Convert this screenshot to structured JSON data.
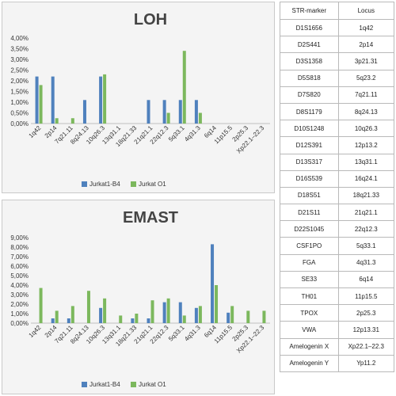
{
  "chart_data": [
    {
      "type": "bar",
      "title": "LOH",
      "categories": [
        "1q42",
        "2p14",
        "7q21.11",
        "8q24.13",
        "10q26.3",
        "13q31.1",
        "18q21.33",
        "21q21.1",
        "22q12.3",
        "5q33.1",
        "4q31.3",
        "6q14",
        "11p15.5",
        "2p25.3",
        "Xp22.1–22.3"
      ],
      "series": [
        {
          "name": "Jurkat1-B4",
          "color": "#4f81bd",
          "values": [
            2.2,
            2.2,
            0,
            1.1,
            2.2,
            0,
            0,
            1.1,
            1.1,
            1.1,
            1.1,
            0,
            0,
            0,
            0
          ]
        },
        {
          "name": "Jurkat O1",
          "color": "#7cb85d",
          "values": [
            1.8,
            0.25,
            0.25,
            0,
            2.3,
            0,
            0,
            0,
            0.5,
            3.4,
            0.5,
            0,
            0,
            0,
            0
          ]
        }
      ],
      "yticks": [
        "0,00%",
        "0,50%",
        "1,00%",
        "1,50%",
        "2,00%",
        "2,50%",
        "3,00%",
        "3,50%",
        "4,00%"
      ],
      "ylim": [
        0,
        4
      ],
      "legend": "bottom"
    },
    {
      "type": "bar",
      "title": "EMAST",
      "categories": [
        "1q42",
        "2p14",
        "7q21.11",
        "8q24.13",
        "10q26.3",
        "13q31.1",
        "18q21.33",
        "21q21.1",
        "22q12.3",
        "5q33.1",
        "4q31.3",
        "6q14",
        "11p15.5",
        "2p25.3",
        "Xp22.1–22.3"
      ],
      "series": [
        {
          "name": "Jurkat1-B4",
          "color": "#4f81bd",
          "values": [
            0,
            0.5,
            0.5,
            0,
            1.6,
            0,
            0.5,
            0.5,
            2.2,
            2.2,
            1.6,
            8.3,
            1.1,
            0,
            0
          ]
        },
        {
          "name": "Jurkat O1",
          "color": "#7cb85d",
          "values": [
            3.7,
            1.3,
            1.8,
            3.4,
            2.6,
            0.8,
            1.0,
            2.4,
            2.6,
            0.8,
            1.8,
            4.0,
            1.8,
            1.3,
            1.3
          ]
        }
      ],
      "yticks": [
        "0,00%",
        "1,00%",
        "2,00%",
        "3,00%",
        "4,00%",
        "5,00%",
        "6,00%",
        "7,00%",
        "8,00%",
        "9,00%"
      ],
      "ylim": [
        0,
        9
      ],
      "legend": "bottom"
    }
  ],
  "table": {
    "headers": [
      "STR-marker",
      "Locus"
    ],
    "rows": [
      [
        "D1S1656",
        "1q42"
      ],
      [
        "D2S441",
        "2p14"
      ],
      [
        "D3S1358",
        "3p21.31"
      ],
      [
        "D5S818",
        "5q23.2"
      ],
      [
        "D7S820",
        "7q21.11"
      ],
      [
        "D8S1179",
        "8q24.13"
      ],
      [
        "D10S1248",
        "10q26.3"
      ],
      [
        "D12S391",
        "12p13.2"
      ],
      [
        "D13S317",
        "13q31.1"
      ],
      [
        "D16S539",
        "16q24.1"
      ],
      [
        "D18S51",
        "18q21.33"
      ],
      [
        "D21S11",
        "21q21.1"
      ],
      [
        "D22S1045",
        "22q12.3"
      ],
      [
        "CSF1PO",
        "5q33.1"
      ],
      [
        "FGA",
        "4q31.3"
      ],
      [
        "SE33",
        "6q14"
      ],
      [
        "TH01",
        "11p15.5"
      ],
      [
        "TPOX",
        "2p25.3"
      ],
      [
        "VWA",
        "12p13.31"
      ],
      [
        "Amelogenin X",
        "Xp22.1–22.3"
      ],
      [
        "Amelogenin Y",
        "Yp11.2"
      ]
    ]
  }
}
